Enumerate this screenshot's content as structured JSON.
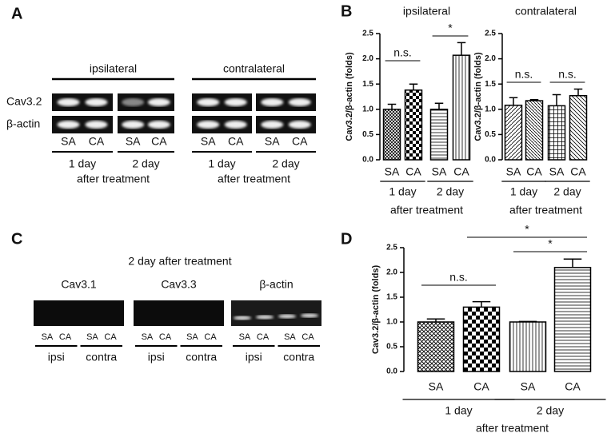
{
  "panel_labels": [
    "A",
    "B",
    "C",
    "D"
  ],
  "gel_a": {
    "groups": [
      "ipsilateral",
      "contralateral"
    ],
    "rows": [
      "Cav3.2",
      "β-actin"
    ],
    "lanes": [
      "SA",
      "CA",
      "SA",
      "CA",
      "SA",
      "CA",
      "SA",
      "CA"
    ],
    "days": [
      "1 day",
      "2 day",
      "1 day",
      "2 day"
    ],
    "footer": [
      "after treatment",
      "after treatment"
    ]
  },
  "gel_c": {
    "title": "2 day after treatment",
    "blots": [
      "Cav3.1",
      "Cav3.3",
      "β-actin"
    ],
    "lanes": [
      "SA",
      "CA",
      "SA",
      "CA",
      "SA",
      "CA",
      "SA",
      "CA",
      "SA",
      "CA",
      "SA",
      "CA"
    ],
    "sides": [
      "ipsi",
      "contra",
      "ipsi",
      "contra",
      "ipsi",
      "contra"
    ]
  },
  "chart_data": [
    {
      "type": "bar",
      "title": "ipsilateral",
      "y_label": "Cav3.2/β-actin (folds)",
      "x_label": "after treatment",
      "categories": [
        "SA",
        "CA",
        "SA",
        "CA"
      ],
      "groups": [
        "1 day",
        "2 day"
      ],
      "values": [
        1.0,
        1.38,
        1.0,
        2.07
      ],
      "errors": [
        0.1,
        0.12,
        0.12,
        0.25
      ],
      "ylim": [
        0,
        2.5
      ],
      "yticks": [
        {
          "value": 0,
          "label": "0.0"
        },
        0.5,
        {
          "value": 1,
          "label": "1.0"
        },
        1.5,
        {
          "value": 2,
          "label": "2.0"
        },
        2.5
      ],
      "annotations": [
        "n.s.",
        "*"
      ]
    },
    {
      "type": "bar",
      "title": "contralateral",
      "y_label": "Cav3.2/β-actin (folds)",
      "x_label": "after treatment",
      "categories": [
        "SA",
        "CA",
        "SA",
        "CA"
      ],
      "groups": [
        "1 day",
        "2 day"
      ],
      "values": [
        1.08,
        1.17,
        1.07,
        1.27
      ],
      "errors": [
        0.15,
        0.02,
        0.22,
        0.13
      ],
      "ylim": [
        0,
        2.5
      ],
      "yticks": [
        {
          "value": 0,
          "label": "0.0"
        },
        0.5,
        {
          "value": 1,
          "label": "1.0"
        },
        1.5,
        {
          "value": 2,
          "label": "2.0"
        },
        2.5
      ],
      "annotations": [
        "n.s.",
        "n.s."
      ]
    },
    {
      "type": "bar",
      "y_label": "Cav3.2/β-actin (folds)",
      "x_label": "after treatment",
      "categories": [
        "SA",
        "CA",
        "SA",
        "CA"
      ],
      "groups": [
        "1 day",
        "2 day"
      ],
      "values": [
        1.0,
        1.3,
        1.0,
        2.1
      ],
      "errors": [
        0.06,
        0.11,
        0.01,
        0.17
      ],
      "ylim": [
        0,
        2.5
      ],
      "yticks": [
        {
          "value": 0,
          "label": "0.0"
        },
        0.5,
        {
          "value": 1,
          "label": "1.0"
        },
        1.5,
        {
          "value": 2,
          "label": "2.0"
        },
        2.5
      ],
      "annotations": [
        "n.s.",
        "*",
        "*"
      ]
    }
  ]
}
